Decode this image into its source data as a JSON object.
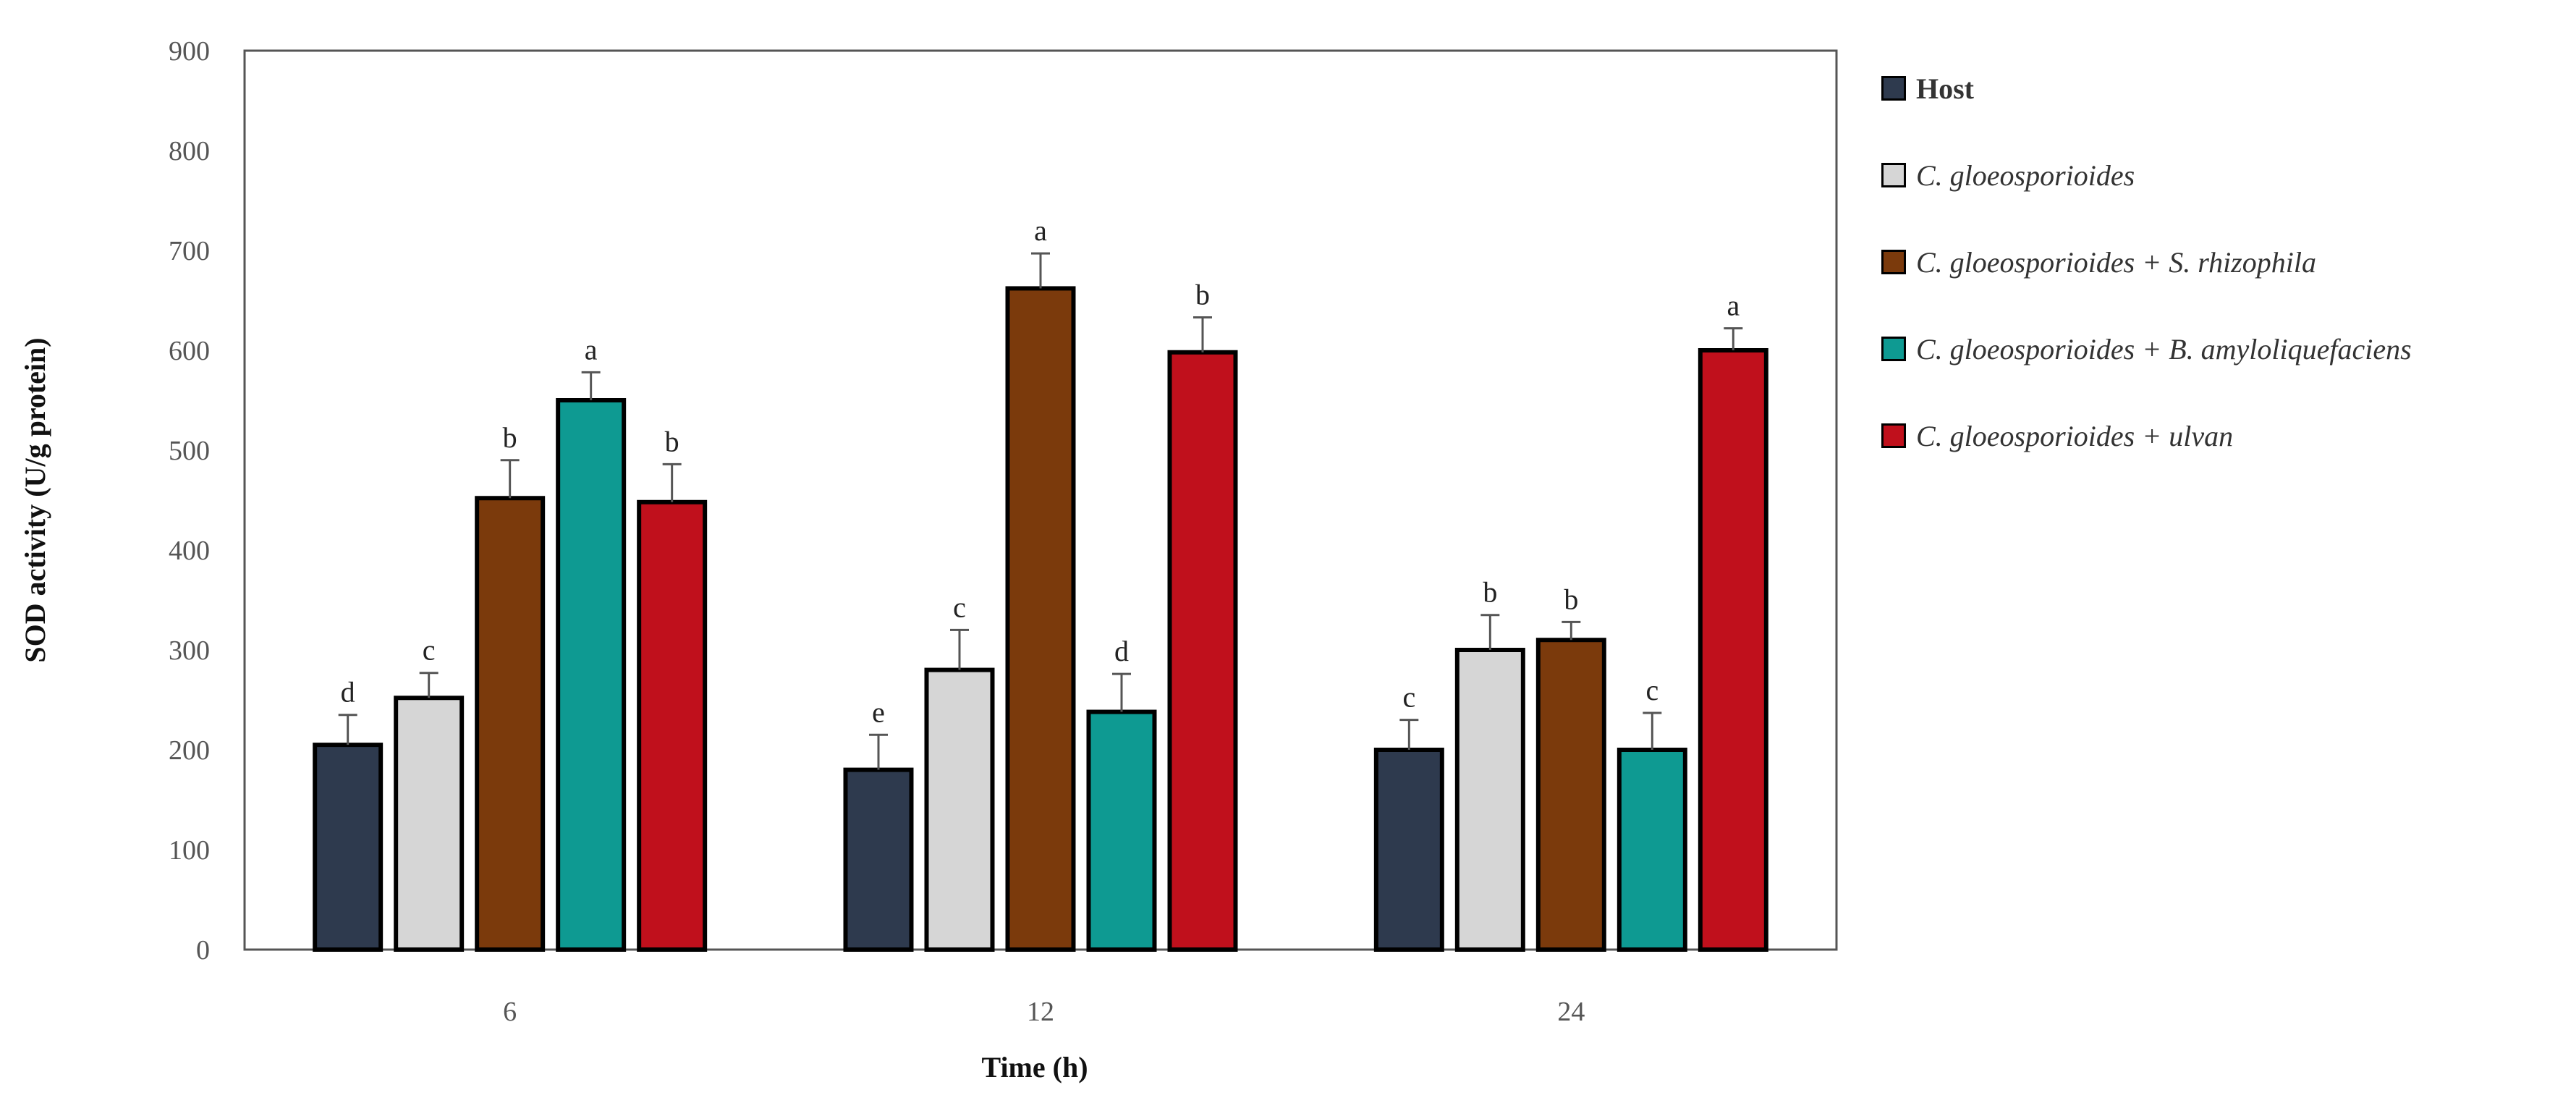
{
  "chart_data": {
    "type": "bar",
    "title": "",
    "xlabel": "Time (h)",
    "ylabel": "SOD activity (U/g protein)",
    "ylim": [
      0,
      900
    ],
    "yticks": [
      "0",
      "100",
      "200",
      "300",
      "400",
      "500",
      "600",
      "700",
      "800",
      "900"
    ],
    "categories": [
      "6",
      "12",
      "24"
    ],
    "grid": false,
    "legend_position": "right",
    "series": [
      {
        "name": "Host",
        "color": "#2e3a4e",
        "values": [
          205,
          180,
          200
        ],
        "errors": [
          30,
          35,
          30
        ],
        "letters": [
          "d",
          "e",
          "c"
        ]
      },
      {
        "name": "C. gloeosporioides",
        "color": "#d6d6d6",
        "values": [
          252,
          280,
          300
        ],
        "errors": [
          25,
          40,
          35
        ],
        "letters": [
          "c",
          "c",
          "b"
        ]
      },
      {
        "name": "C. gloeosporioides + S. rhizophila",
        "color": "#7b3a0c",
        "values": [
          452,
          662,
          310
        ],
        "errors": [
          38,
          35,
          18
        ],
        "letters": [
          "b",
          "a",
          "b"
        ]
      },
      {
        "name": "C. gloeosporioides + B. amyloliquefaciens",
        "color": "#0e9a92",
        "values": [
          550,
          238,
          200
        ],
        "errors": [
          28,
          38,
          37
        ],
        "letters": [
          "a",
          "d",
          "c"
        ]
      },
      {
        "name": "C. gloeosporioides + ulvan",
        "color": "#c0101c",
        "values": [
          448,
          598,
          600
        ],
        "errors": [
          38,
          35,
          22
        ],
        "letters": [
          "b",
          "b",
          "a"
        ]
      }
    ]
  }
}
